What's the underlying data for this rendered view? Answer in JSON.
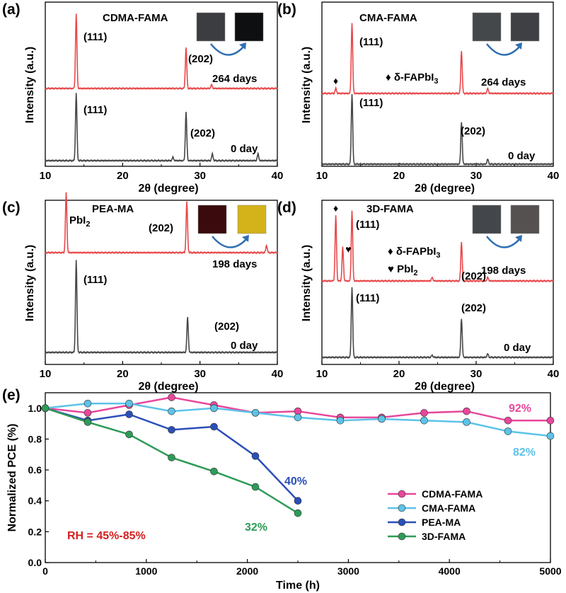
{
  "colors": {
    "red": "#e8484a",
    "black": "#474747",
    "arrow": "#2f6fb3",
    "pink": "#e8479b",
    "light_blue": "#5cc3e8",
    "dark_blue": "#2a4fb8",
    "green": "#2e9b58",
    "dark_red": "#d42020"
  },
  "chart_data": [
    {
      "panel": "(a)",
      "type": "line",
      "title": "CDMA-FAMA",
      "xlabel": "2θ (degree)",
      "ylabel": "Intensity (a.u.)",
      "xlim": [
        10,
        40
      ],
      "xticks": [
        10,
        20,
        30,
        40
      ],
      "insets": [
        "film-before",
        "film-after"
      ],
      "inset_colors": [
        "#3b3d40",
        "#0e0f11"
      ],
      "series": [
        {
          "name": "264 days",
          "color": "#e8484a",
          "peaks": [
            {
              "x": 14.0,
              "h": 1.0
            },
            {
              "x": 28.2,
              "h": 0.55
            },
            {
              "x": 31.5,
              "h": 0.05
            }
          ],
          "labels": [
            {
              "text": "(111)",
              "x": 14.4
            },
            {
              "text": "(202)",
              "x": 28.5
            }
          ]
        },
        {
          "name": "0 day",
          "color": "#474747",
          "peaks": [
            {
              "x": 14.0,
              "h": 1.0
            },
            {
              "x": 28.2,
              "h": 0.72
            },
            {
              "x": 31.6,
              "h": 0.1
            },
            {
              "x": 37.5,
              "h": 0.1
            },
            {
              "x": 26.5,
              "h": 0.05
            }
          ],
          "labels": [
            {
              "text": "(111)",
              "x": 14.4
            },
            {
              "text": "(202)",
              "x": 28.6
            }
          ]
        }
      ]
    },
    {
      "panel": "(b)",
      "type": "line",
      "title": "CMA-FAMA",
      "xlabel": "2θ (degree)",
      "ylabel": "Intensity (a.u.)",
      "xlim": [
        10,
        40
      ],
      "xticks": [
        10,
        20,
        30,
        40
      ],
      "insets": [
        "film-before",
        "film-after"
      ],
      "inset_colors": [
        "#45484b",
        "#3e4043"
      ],
      "series": [
        {
          "name": "264 days",
          "color": "#e8484a",
          "peaks": [
            {
              "x": 11.8,
              "h": 0.07
            },
            {
              "x": 13.9,
              "h": 1.0
            },
            {
              "x": 28.1,
              "h": 0.6
            },
            {
              "x": 31.5,
              "h": 0.07
            }
          ],
          "labels": [
            {
              "text": "(202)",
              "x": 28.4
            }
          ],
          "markers": [
            {
              "text": "♦",
              "x": 11.8
            }
          ]
        },
        {
          "name": "0 day",
          "color": "#474747",
          "peaks": [
            {
              "x": 13.9,
              "h": 1.0
            },
            {
              "x": 28.1,
              "h": 0.6
            },
            {
              "x": 31.5,
              "h": 0.07
            }
          ],
          "labels": [
            {
              "text": "(111)",
              "x": 14.4
            },
            {
              "text": "(202)",
              "x": 28.5
            }
          ]
        }
      ],
      "annotations": [
        "(111)",
        "♦ δ-FAPbI₃"
      ]
    },
    {
      "panel": "(c)",
      "type": "line",
      "title": "PEA-MA",
      "xlabel": "2θ (degree)",
      "ylabel": "Intensity (a.u.)",
      "xlim": [
        10,
        40
      ],
      "xticks": [
        10,
        20,
        30,
        40
      ],
      "insets": [
        "film-before",
        "film-after"
      ],
      "inset_colors": [
        "#3a0a0c",
        "#d4b21a"
      ],
      "series": [
        {
          "name": "198 days",
          "color": "#e8484a",
          "peaks": [
            {
              "x": 12.7,
              "h": 1.0
            },
            {
              "x": 28.3,
              "h": 0.85
            },
            {
              "x": 38.6,
              "h": 0.12
            }
          ],
          "labels": [
            {
              "text": "PbI₂",
              "x": 13.1
            },
            {
              "text": "(202)",
              "x": 26.3
            }
          ]
        },
        {
          "name": "0 day",
          "color": "#474747",
          "peaks": [
            {
              "x": 14.0,
              "h": 1.0
            },
            {
              "x": 28.4,
              "h": 0.38
            }
          ],
          "labels": [
            {
              "text": "(111)",
              "x": 14.4
            },
            {
              "text": "(202)",
              "x": 28.8
            }
          ]
        }
      ]
    },
    {
      "panel": "(d)",
      "type": "line",
      "title": "3D-FAMA",
      "xlabel": "2θ (degree)",
      "ylabel": "Intensity (a.u.)",
      "xlim": [
        10,
        40
      ],
      "xticks": [
        10,
        20,
        30,
        40
      ],
      "insets": [
        "film-before",
        "film-after"
      ],
      "inset_colors": [
        "#43474b",
        "#555150"
      ],
      "series": [
        {
          "name": "198 days",
          "color": "#e8484a",
          "peaks": [
            {
              "x": 11.8,
              "h": 0.92
            },
            {
              "x": 12.7,
              "h": 0.48
            },
            {
              "x": 13.9,
              "h": 1.0
            },
            {
              "x": 28.1,
              "h": 0.55
            },
            {
              "x": 24.3,
              "h": 0.05
            },
            {
              "x": 31.5,
              "h": 0.05
            }
          ],
          "labels": [
            {
              "text": "(111)",
              "x": 14.4
            },
            {
              "text": "(202)",
              "x": 28.5
            }
          ],
          "markers": [
            {
              "text": "♦",
              "x": 11.8
            },
            {
              "text": "♥",
              "x": 12.7
            }
          ]
        },
        {
          "name": "0 day",
          "color": "#474747",
          "peaks": [
            {
              "x": 13.9,
              "h": 1.0
            },
            {
              "x": 28.1,
              "h": 0.55
            },
            {
              "x": 24.3,
              "h": 0.03
            },
            {
              "x": 31.5,
              "h": 0.05
            }
          ],
          "labels": [
            {
              "text": "(111)",
              "x": 14.4
            },
            {
              "text": "(202)",
              "x": 28.5
            }
          ]
        }
      ],
      "annotations": [
        "♦ δ-FAPbI₃",
        "♥ PbI₂"
      ]
    },
    {
      "panel": "(e)",
      "type": "line",
      "xlabel": "Time (h)",
      "ylabel": "Normalized PCE (%)",
      "xlim": [
        0,
        5000
      ],
      "ylim": [
        0.0,
        1.1
      ],
      "xticks": [
        0,
        1000,
        2000,
        3000,
        4000,
        5000
      ],
      "yticks": [
        0.0,
        0.2,
        0.4,
        0.6,
        0.8,
        1.0
      ],
      "annotation": "RH = 45%-85%",
      "series": [
        {
          "name": "CDMA-FAMA",
          "color": "#e8479b",
          "x": [
            0,
            420,
            830,
            1250,
            1670,
            2080,
            2500,
            2920,
            3330,
            3750,
            4170,
            4580,
            5000
          ],
          "y": [
            1.0,
            0.97,
            1.02,
            1.07,
            1.02,
            0.97,
            0.98,
            0.94,
            0.94,
            0.97,
            0.98,
            0.92,
            0.92
          ],
          "end_label": "92%"
        },
        {
          "name": "CMA-FAMA",
          "color": "#5cc3e8",
          "x": [
            0,
            420,
            830,
            1250,
            1670,
            2080,
            2500,
            2920,
            3330,
            3750,
            4170,
            4580,
            5000
          ],
          "y": [
            1.0,
            1.03,
            1.03,
            0.98,
            1.0,
            0.97,
            0.94,
            0.92,
            0.93,
            0.92,
            0.91,
            0.85,
            0.82
          ],
          "end_label": "82%"
        },
        {
          "name": "PEA-MA",
          "color": "#2a4fb8",
          "x": [
            0,
            420,
            830,
            1250,
            1670,
            2080,
            2500
          ],
          "y": [
            1.0,
            0.92,
            0.96,
            0.86,
            0.88,
            0.69,
            0.4
          ],
          "end_label": "40%"
        },
        {
          "name": "3D-FAMA",
          "color": "#2e9b58",
          "x": [
            0,
            420,
            830,
            1250,
            1670,
            2080,
            2500
          ],
          "y": [
            1.0,
            0.91,
            0.83,
            0.68,
            0.59,
            0.49,
            0.32
          ],
          "end_label": "32%"
        }
      ]
    }
  ]
}
